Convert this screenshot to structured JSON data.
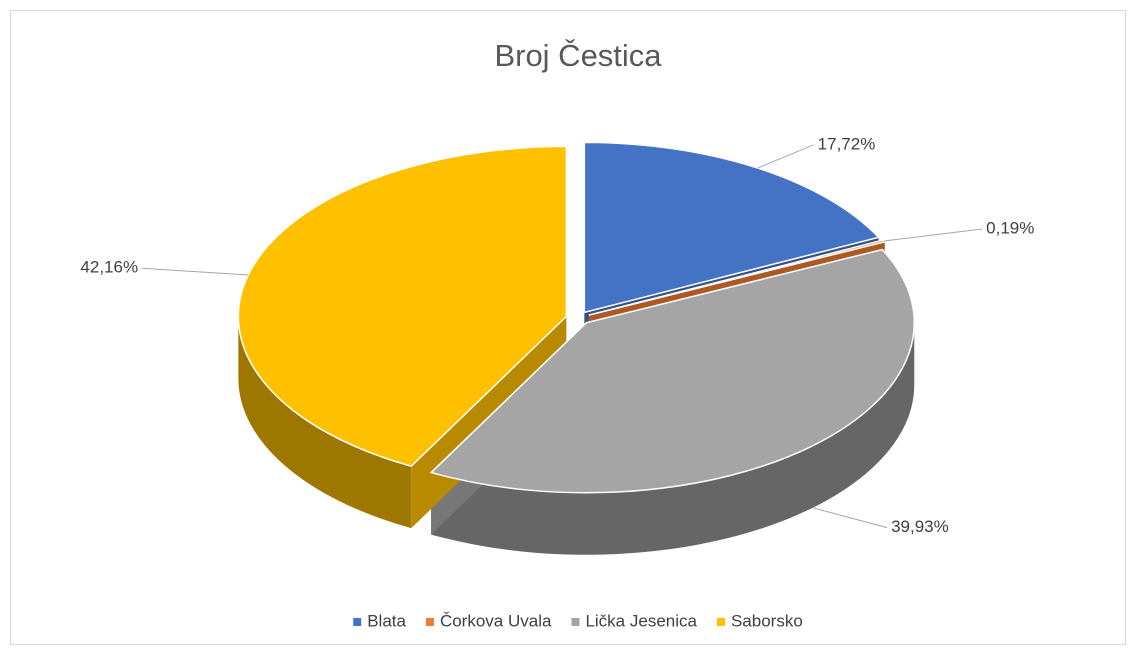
{
  "chart_data": {
    "type": "pie",
    "title": "Broj Čestica",
    "categories": [
      "Blata",
      "Čorkova Uvala",
      "Lička Jesenica",
      "Saborsko"
    ],
    "values": [
      17.72,
      0.19,
      39.93,
      42.16
    ],
    "value_labels": [
      "17,72%",
      "0,19%",
      "39,93%",
      "42,16%"
    ],
    "colors": [
      "#4472c4",
      "#ed7d31",
      "#a5a5a5",
      "#ffc000"
    ],
    "legend": "bottom"
  }
}
